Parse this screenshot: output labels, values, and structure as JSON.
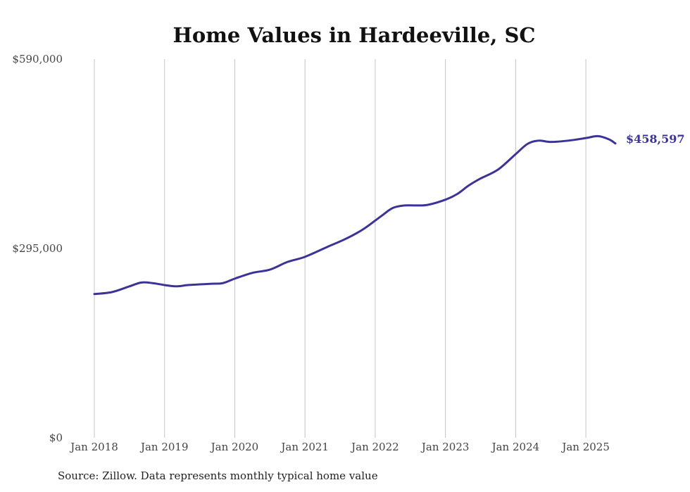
{
  "chart_data": {
    "type": "line",
    "title": "Home Values in Hardeeville, SC",
    "xlabel": "",
    "ylabel": "",
    "ylim": [
      0,
      590000
    ],
    "y_ticks": [
      {
        "value": 0,
        "label": "$0"
      },
      {
        "value": 295000,
        "label": "$295,000"
      },
      {
        "value": 590000,
        "label": "$590,000"
      }
    ],
    "x_ticks": [
      {
        "value": 2018.0,
        "label": "Jan 2018"
      },
      {
        "value": 2019.0,
        "label": "Jan 2019"
      },
      {
        "value": 2020.0,
        "label": "Jan 2020"
      },
      {
        "value": 2021.0,
        "label": "Jan 2021"
      },
      {
        "value": 2022.0,
        "label": "Jan 2022"
      },
      {
        "value": 2023.0,
        "label": "Jan 2023"
      },
      {
        "value": 2024.0,
        "label": "Jan 2024"
      },
      {
        "value": 2025.0,
        "label": "Jan 2025"
      }
    ],
    "xlim": [
      2018.0,
      2025.42
    ],
    "grid": "vertical",
    "series": [
      {
        "name": "Typical home value",
        "color": "#3c3397",
        "end_label": "$458,597",
        "x": [
          2018.0,
          2018.25,
          2018.5,
          2018.67,
          2018.83,
          2019.0,
          2019.17,
          2019.33,
          2019.5,
          2019.67,
          2019.83,
          2020.0,
          2020.25,
          2020.5,
          2020.75,
          2021.0,
          2021.33,
          2021.58,
          2021.83,
          2022.08,
          2022.25,
          2022.42,
          2022.58,
          2022.75,
          2023.0,
          2023.17,
          2023.33,
          2023.5,
          2023.75,
          2024.0,
          2024.17,
          2024.33,
          2024.5,
          2024.75,
          2025.0,
          2025.17,
          2025.33,
          2025.42
        ],
        "values": [
          224000,
          227000,
          236000,
          242000,
          241000,
          238000,
          236000,
          238000,
          239000,
          240000,
          241000,
          248000,
          257000,
          262000,
          274000,
          282000,
          298000,
          310000,
          325000,
          345000,
          358000,
          362000,
          362000,
          363000,
          371000,
          380000,
          393000,
          404000,
          418000,
          442000,
          458000,
          463000,
          461000,
          463000,
          467000,
          470000,
          465000,
          458597
        ]
      }
    ],
    "source_note": "Source: Zillow. Data represents monthly typical home value"
  }
}
